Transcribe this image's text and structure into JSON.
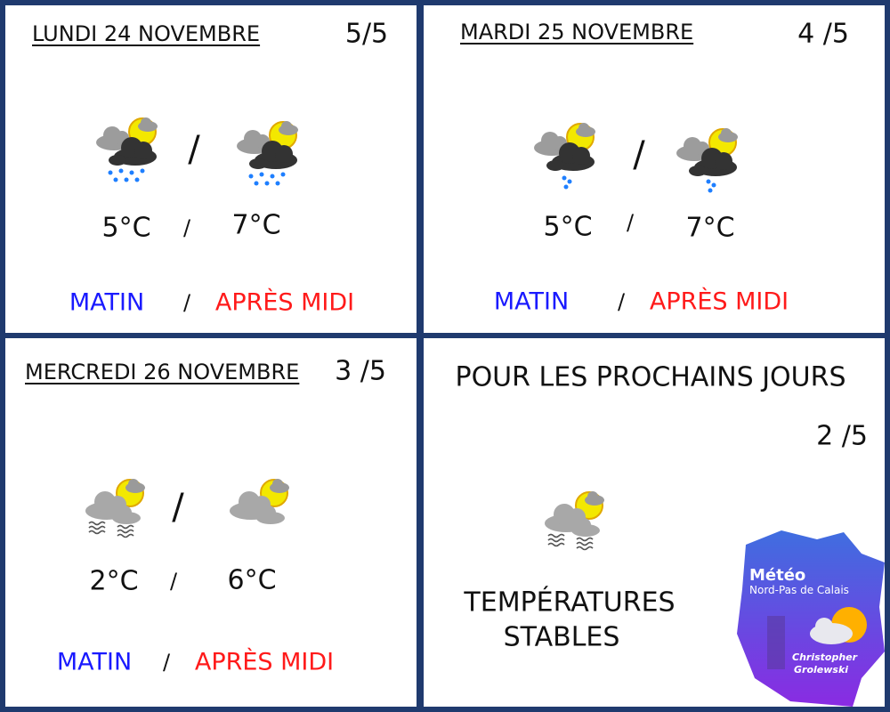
{
  "separator": "/",
  "panels": [
    {
      "title": "LUNDI 24 NOVEMBRE",
      "rating": "5/5",
      "morning_temp": "5°C",
      "afternoon_temp": "7°C",
      "morning_label": "MATIN",
      "afternoon_label": "APRÈS MIDI"
    },
    {
      "title": "MARDI 25 NOVEMBRE",
      "rating": "4 /5",
      "morning_temp": "5°C",
      "afternoon_temp": "7°C",
      "morning_label": "MATIN",
      "afternoon_label": "APRÈS MIDI"
    },
    {
      "title": "MERCREDI 26 NOVEMBRE",
      "rating": "3 /5",
      "morning_temp": "2°C",
      "afternoon_temp": "6°C",
      "morning_label": "MATIN",
      "afternoon_label": "APRÈS MIDI"
    }
  ],
  "outlook": {
    "title": "POUR LES PROCHAINS JOURS",
    "rating": "2 /5",
    "lines": [
      "TEMPÉRATURES",
      "STABLES"
    ]
  },
  "logo": {
    "title": "Météo",
    "region": "Nord-Pas de Calais",
    "author": [
      "Christopher",
      "Grolewski"
    ]
  }
}
